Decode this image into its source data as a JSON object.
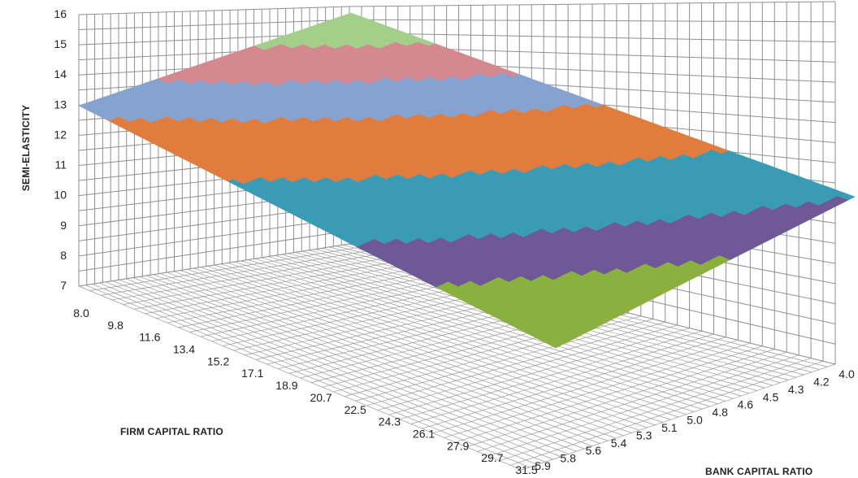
{
  "chart_data": {
    "type": "surface",
    "zlabel": "SEMI-ELASTICITY",
    "xlabel": "FIRM CAPITAL RATIO",
    "ylabel": "BANK CAPITAL RATIO",
    "zlim": [
      7,
      16
    ],
    "z_ticks": [
      "7",
      "8",
      "9",
      "10",
      "11",
      "12",
      "13",
      "14",
      "15",
      "16"
    ],
    "firm_ticks": [
      "8.0",
      "9.8",
      "11.6",
      "13.4",
      "15.2",
      "17.1",
      "18.9",
      "20.7",
      "22.5",
      "24.3",
      "26.1",
      "27.9",
      "29.7",
      "31.5"
    ],
    "bank_ticks": [
      "5.9",
      "5.8",
      "5.6",
      "5.4",
      "5.3",
      "5.1",
      "5.0",
      "4.8",
      "4.6",
      "4.5",
      "4.3",
      "4.2",
      "4.0"
    ],
    "corners": [
      {
        "firm": 8.0,
        "bank": 4.0,
        "value": 16.0
      },
      {
        "firm": 8.0,
        "bank": 5.9,
        "value": 13.3
      },
      {
        "firm": 31.5,
        "bank": 4.0,
        "value": 10.0
      },
      {
        "firm": 31.5,
        "bank": 5.9,
        "value": 7.5
      }
    ],
    "band_colors": [
      "#8ab13f",
      "#6f5897",
      "#3a9cb4",
      "#e07d3e",
      "#86a3d0",
      "#d48890",
      "#a4cf8a"
    ],
    "grid": true
  }
}
